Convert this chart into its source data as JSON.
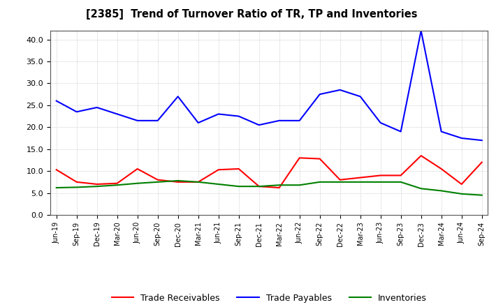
{
  "title": "[2385]  Trend of Turnover Ratio of TR, TP and Inventories",
  "x_labels": [
    "Jun-19",
    "Sep-19",
    "Dec-19",
    "Mar-20",
    "Jun-20",
    "Sep-20",
    "Dec-20",
    "Mar-21",
    "Jun-21",
    "Sep-21",
    "Dec-21",
    "Mar-22",
    "Jun-22",
    "Sep-22",
    "Dec-22",
    "Mar-23",
    "Jun-23",
    "Sep-23",
    "Dec-23",
    "Mar-24",
    "Jun-24",
    "Sep-24"
  ],
  "trade_receivables": [
    10.3,
    7.5,
    7.0,
    7.2,
    10.5,
    8.0,
    7.5,
    7.5,
    10.3,
    10.5,
    6.5,
    6.2,
    13.0,
    12.8,
    8.0,
    8.5,
    9.0,
    9.0,
    13.5,
    10.5,
    7.0,
    12.0
  ],
  "trade_payables": [
    26.0,
    23.5,
    24.5,
    23.0,
    21.5,
    21.5,
    27.0,
    21.0,
    23.0,
    22.5,
    20.5,
    21.5,
    21.5,
    27.5,
    28.5,
    27.0,
    21.0,
    19.0,
    42.0,
    19.0,
    17.5,
    17.0
  ],
  "inventories": [
    6.2,
    6.3,
    6.5,
    6.8,
    7.2,
    7.5,
    7.8,
    7.5,
    7.0,
    6.5,
    6.5,
    6.8,
    6.8,
    7.5,
    7.5,
    7.5,
    7.5,
    7.5,
    6.0,
    5.5,
    4.8,
    4.5
  ],
  "ylim": [
    0.0,
    42.0
  ],
  "yticks": [
    0.0,
    5.0,
    10.0,
    15.0,
    20.0,
    25.0,
    30.0,
    35.0,
    40.0
  ],
  "tr_color": "#ff0000",
  "tp_color": "#0000ff",
  "inv_color": "#008000",
  "background_color": "#ffffff",
  "grid_color": "#aaaaaa",
  "legend_labels": [
    "Trade Receivables",
    "Trade Payables",
    "Inventories"
  ]
}
